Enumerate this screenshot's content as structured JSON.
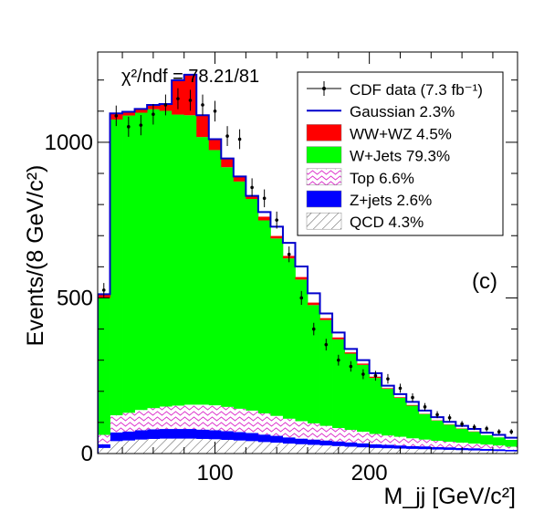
{
  "chart_data": {
    "type": "bar",
    "stacked": true,
    "panel_label": "(c)",
    "chi2_text": "χ²/ndf = 78.21/81",
    "xlabel": "M_jj [GeV/c²]",
    "ylabel": "Events/(8 GeV/c²)",
    "xlim": [
      24,
      296
    ],
    "ylim": [
      0,
      1290
    ],
    "x_ticks": [
      100,
      200
    ],
    "y_ticks": [
      0,
      500,
      1000
    ],
    "legend_position": "top-right",
    "bin_edges": [
      24,
      32,
      40,
      48,
      56,
      64,
      72,
      80,
      88,
      96,
      104,
      112,
      120,
      128,
      136,
      144,
      152,
      160,
      168,
      176,
      184,
      192,
      200,
      208,
      216,
      224,
      232,
      240,
      248,
      256,
      264,
      272,
      280,
      288,
      296
    ],
    "series": [
      {
        "name": "QCD 4.3%",
        "color": "#ffffff",
        "pattern": "diagonal-hatch",
        "values": [
          18,
          40,
          42,
          45,
          47,
          48,
          48,
          48,
          47,
          46,
          44,
          42,
          40,
          37,
          35,
          32,
          30,
          28,
          26,
          24,
          22,
          20,
          18,
          17,
          16,
          15,
          14,
          13,
          12,
          11,
          10,
          9,
          8,
          7
        ]
      },
      {
        "name": "Z+jets 2.6%",
        "color": "#0000ff",
        "values": [
          12,
          28,
          29,
          30,
          31,
          31,
          31,
          31,
          30,
          29,
          28,
          27,
          26,
          24,
          22,
          20,
          18,
          17,
          16,
          15,
          14,
          13,
          12,
          11,
          10,
          9,
          9,
          8,
          8,
          7,
          7,
          6,
          6,
          5
        ]
      },
      {
        "name": "Top 6.6%",
        "color": "#ee55cc",
        "pattern": "wave",
        "values": [
          30,
          55,
          60,
          65,
          68,
          72,
          75,
          78,
          80,
          80,
          78,
          75,
          72,
          68,
          64,
          60,
          56,
          52,
          47,
          43,
          40,
          37,
          33,
          30,
          28,
          25,
          22,
          20,
          18,
          17,
          15,
          14,
          12,
          10
        ]
      },
      {
        "name": "W+Jets 79.3%",
        "color": "#00ff00",
        "values": [
          440,
          950,
          955,
          955,
          960,
          950,
          935,
          930,
          860,
          820,
          770,
          730,
          680,
          620,
          570,
          515,
          455,
          380,
          340,
          285,
          245,
          215,
          180,
          150,
          125,
          105,
          82,
          65,
          55,
          45,
          38,
          30,
          26,
          22
        ]
      },
      {
        "name": "WW+WZ 4.5%",
        "color": "#ff0000",
        "values": [
          12,
          20,
          12,
          12,
          14,
          22,
          110,
          130,
          70,
          35,
          28,
          16,
          10,
          12,
          8,
          8,
          8,
          8,
          6,
          6,
          4,
          4,
          4,
          2,
          2,
          2,
          1,
          1,
          1,
          1,
          1,
          0,
          0,
          0
        ]
      }
    ],
    "gaussian": {
      "name": "Gaussian  2.3%",
      "color": "#0000cc",
      "totals": [
        512,
        1093,
        1098,
        1107,
        1120,
        1123,
        1199,
        1217,
        1087,
        1010,
        948,
        890,
        828,
        776,
        729,
        677,
        601,
        515,
        450,
        389,
        336,
        300,
        258,
        218,
        191,
        166,
        138,
        117,
        102,
        89,
        79,
        67,
        60,
        51
      ]
    },
    "data_points": {
      "name": "CDF data (7.3 fb⁻¹)",
      "values": [
        525,
        1085,
        1050,
        1055,
        1090,
        1120,
        1140,
        1135,
        1120,
        1100,
        1020,
        1010,
        855,
        820,
        750,
        640,
        500,
        400,
        350,
        300,
        280,
        255,
        250,
        240,
        210,
        180,
        150,
        125,
        115,
        95,
        85,
        80,
        70,
        70
      ]
    }
  }
}
